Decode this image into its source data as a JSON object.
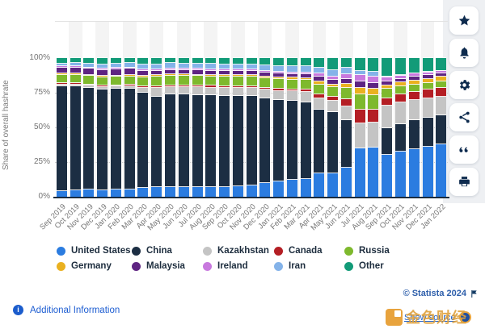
{
  "ui": {
    "colors": {
      "link_blue": "#1e5ed2",
      "statista_blue": "#2e5fab",
      "watermark_gold": "#dfa13c",
      "axis_text": "#737373",
      "baseline": "#1a2c40",
      "stripe": "#f4f4f4",
      "rail_icon": "#0e2b4e"
    },
    "sidebar": {
      "buttons": [
        {
          "name": "favorite-button",
          "icon": "star-icon"
        },
        {
          "name": "notification-button",
          "icon": "bell-icon"
        },
        {
          "name": "settings-button",
          "icon": "gear-icon"
        },
        {
          "name": "share-button",
          "icon": "share-icon"
        },
        {
          "name": "cite-button",
          "icon": "quote-icon"
        },
        {
          "name": "print-button",
          "icon": "printer-icon"
        }
      ]
    },
    "footer": {
      "additional_information_label": "Additional Information",
      "statista_credit": "© Statista 2024",
      "show_source_label": "Show source",
      "watermark_text": "金色财经"
    }
  },
  "chart_data": {
    "type": "bar",
    "subtype": "stacked-100-percent",
    "title": "",
    "xlabel": "",
    "ylabel": "Share of overall hashrate",
    "ylim": [
      0,
      100
    ],
    "y_ticks": [
      {
        "label": "100%",
        "value": 100
      },
      {
        "label": "75%",
        "value": 75
      },
      {
        "label": "50%",
        "value": 50
      },
      {
        "label": "25%",
        "value": 25
      },
      {
        "label": "0%",
        "value": 0
      }
    ],
    "grid": "dotted horizontal at 25/50/75",
    "legend_position": "bottom",
    "categories": [
      "Sep 2019",
      "Oct 2019",
      "Nov 2019",
      "Dec 2019",
      "Jan 2020",
      "Feb 2020",
      "Mar 2020",
      "Apr 2020",
      "May 2020",
      "Jun 2020",
      "Jul 2020",
      "Aug 2020",
      "Sep 2020",
      "Oct 2020",
      "Nov 2020",
      "Dec 2020",
      "Jan 2021",
      "Feb 2021",
      "Mar 2021",
      "Apr 2021",
      "May 2021",
      "Jun 2021",
      "Jul 2021",
      "Aug 2021",
      "Sep 2021",
      "Oct 2021",
      "Nov 2021",
      "Dec 2021",
      "Jan 2022"
    ],
    "series": [
      {
        "name": "United States",
        "color": "#2b7ce0",
        "values": [
          4.1,
          4.5,
          5.1,
          4.7,
          5.3,
          5.4,
          6.4,
          7.2,
          6.9,
          7.0,
          7.1,
          7.1,
          7.2,
          7.4,
          8.1,
          10.0,
          11.2,
          12.0,
          13.0,
          16.8,
          16.9,
          21.0,
          34.9,
          35.4,
          30.5,
          32.5,
          34.5,
          36.0,
          37.8
        ]
      },
      {
        "name": "China",
        "color": "#1c2e43",
        "values": [
          75.5,
          75.0,
          73.5,
          72.9,
          72.6,
          72.8,
          68.5,
          65.1,
          67.2,
          66.9,
          66.4,
          66.0,
          65.6,
          65.3,
          64.3,
          61.0,
          58.4,
          57.0,
          55.3,
          46.0,
          44.0,
          34.3,
          0.0,
          0.0,
          18.9,
          20.0,
          20.5,
          21.0,
          21.1
        ]
      },
      {
        "name": "Kazakhstan",
        "color": "#c4c4c4",
        "values": [
          1.4,
          1.4,
          1.4,
          1.5,
          1.5,
          1.5,
          3.7,
          6.2,
          5.1,
          5.2,
          5.4,
          5.6,
          5.7,
          5.8,
          6.0,
          6.3,
          6.7,
          7.0,
          7.5,
          8.2,
          8.2,
          10.0,
          18.3,
          18.1,
          16.3,
          15.3,
          14.5,
          13.9,
          13.2
        ]
      },
      {
        "name": "Canada",
        "color": "#b41e24",
        "values": [
          1.1,
          1.1,
          1.1,
          1.1,
          1.1,
          1.2,
          1.2,
          1.3,
          1.3,
          1.3,
          1.3,
          1.3,
          1.3,
          1.3,
          1.3,
          1.4,
          1.4,
          1.5,
          1.5,
          3.0,
          3.0,
          5.0,
          9.8,
          9.5,
          5.5,
          5.8,
          6.0,
          6.2,
          6.5
        ]
      },
      {
        "name": "Russia",
        "color": "#7eb92d",
        "values": [
          5.9,
          5.9,
          6.0,
          6.0,
          6.0,
          6.0,
          6.5,
          6.9,
          6.7,
          6.7,
          6.8,
          6.8,
          6.9,
          6.9,
          6.9,
          6.9,
          7.0,
          7.0,
          7.0,
          6.8,
          6.8,
          8.0,
          11.0,
          10.3,
          6.7,
          6.0,
          5.5,
          5.0,
          4.7
        ]
      },
      {
        "name": "Germany",
        "color": "#eab120",
        "values": [
          0.9,
          0.9,
          0.9,
          1.0,
          1.0,
          1.0,
          1.0,
          1.1,
          1.1,
          1.1,
          1.1,
          1.1,
          1.1,
          1.1,
          1.1,
          1.2,
          1.2,
          1.3,
          1.3,
          2.2,
          2.2,
          3.0,
          4.4,
          4.4,
          2.5,
          2.7,
          2.9,
          3.0,
          3.1
        ]
      },
      {
        "name": "Malaysia",
        "color": "#5e2482",
        "values": [
          4.3,
          4.3,
          4.3,
          4.3,
          4.3,
          4.3,
          3.6,
          2.8,
          3.2,
          3.1,
          3.0,
          3.0,
          2.9,
          2.9,
          2.9,
          2.8,
          2.8,
          2.7,
          2.6,
          3.4,
          3.4,
          3.8,
          4.6,
          4.5,
          2.9,
          2.8,
          2.7,
          2.6,
          2.5
        ]
      },
      {
        "name": "Ireland",
        "color": "#c879de",
        "values": [
          1.0,
          1.0,
          1.0,
          1.0,
          1.0,
          1.0,
          1.1,
          1.1,
          1.1,
          1.1,
          1.1,
          1.1,
          1.1,
          1.1,
          1.1,
          1.2,
          1.2,
          1.3,
          1.3,
          2.3,
          2.3,
          3.2,
          4.6,
          4.5,
          2.7,
          2.4,
          2.2,
          2.1,
          2.0
        ]
      },
      {
        "name": "Iran",
        "color": "#84b3e9",
        "values": [
          1.7,
          2.3,
          2.5,
          2.9,
          3.2,
          3.3,
          3.6,
          3.8,
          3.7,
          3.7,
          3.7,
          3.7,
          3.7,
          3.8,
          3.9,
          4.1,
          4.3,
          4.4,
          4.6,
          4.6,
          4.6,
          4.7,
          3.1,
          3.3,
          0.8,
          0.5,
          0.3,
          0.2,
          0.1
        ]
      },
      {
        "name": "Other",
        "color": "#129b78",
        "values": [
          4.1,
          3.6,
          4.2,
          4.6,
          4.0,
          3.5,
          4.4,
          4.5,
          3.7,
          3.9,
          4.1,
          4.3,
          4.5,
          4.4,
          4.4,
          5.1,
          5.8,
          5.8,
          5.9,
          6.7,
          8.6,
          7.0,
          9.3,
          10.0,
          13.2,
          12.0,
          10.9,
          10.0,
          9.0
        ]
      }
    ]
  }
}
